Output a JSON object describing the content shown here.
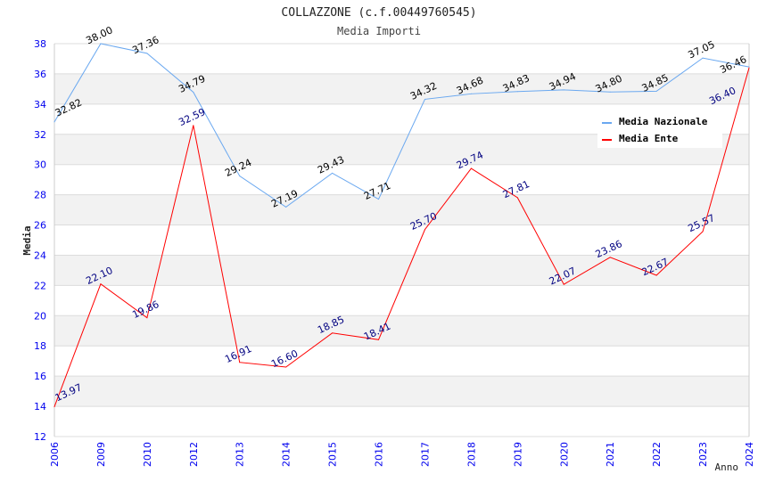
{
  "chart_data": {
    "type": "line",
    "title": "COLLAZZONE (c.f.00449760545)",
    "subtitle": "Media Importi",
    "xlabel": "Anno",
    "ylabel": "Media",
    "ylim": [
      12,
      38
    ],
    "yticks": [
      12,
      14,
      16,
      18,
      20,
      22,
      24,
      26,
      28,
      30,
      32,
      34,
      36,
      38
    ],
    "categories": [
      "2006",
      "2009",
      "2010",
      "2012",
      "2013",
      "2014",
      "2015",
      "2016",
      "2017",
      "2018",
      "2019",
      "2020",
      "2021",
      "2022",
      "2023",
      "2024"
    ],
    "legend_position": "top-right",
    "series": [
      {
        "name": "Media Nazionale",
        "color": "#6aa8f0",
        "label_color": "#000000",
        "values": [
          32.82,
          38.0,
          37.36,
          34.79,
          29.24,
          27.19,
          29.43,
          27.71,
          34.32,
          34.68,
          34.83,
          34.94,
          34.8,
          34.85,
          37.05,
          36.46
        ]
      },
      {
        "name": "Media Ente",
        "color": "#ff0000",
        "label_color": "#000080",
        "values": [
          13.97,
          22.1,
          19.86,
          32.59,
          16.91,
          16.6,
          18.85,
          18.41,
          25.7,
          29.74,
          27.81,
          22.07,
          23.86,
          22.67,
          25.57,
          36.4
        ]
      }
    ]
  }
}
